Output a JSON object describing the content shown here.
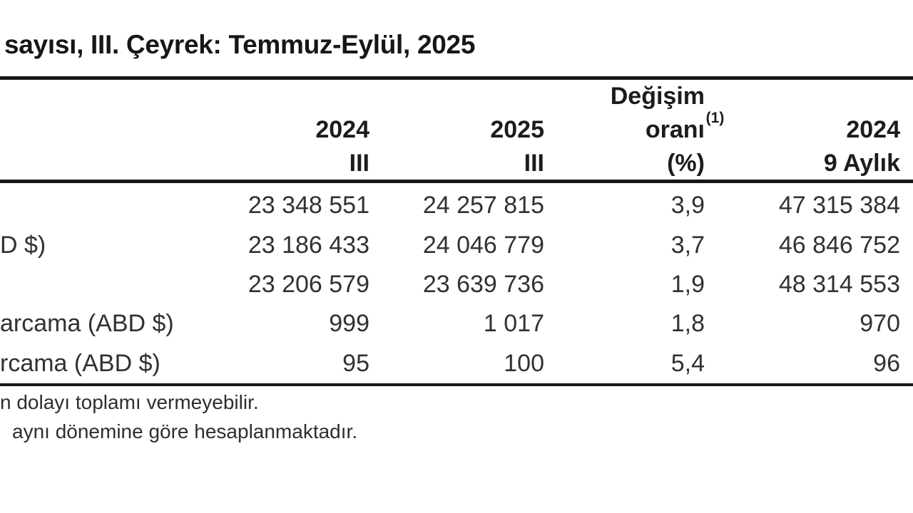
{
  "document": {
    "title": "sayısı, III. Çeyrek: Temmuz-Eylül, 2025"
  },
  "table": {
    "header": {
      "col_2024q": {
        "line1": "2024",
        "line2": "III"
      },
      "col_2025q": {
        "line1": "2025",
        "line2": "III"
      },
      "col_change": {
        "line1": "Değişim",
        "line2": "oranı",
        "sup": "(1)",
        "line3": "(%)"
      },
      "col_9aylik": {
        "line1": "2024",
        "line2": "9 Aylık"
      }
    },
    "rows": [
      {
        "label": "",
        "q2024": "23 348 551",
        "q2025": "24 257 815",
        "change": "3,9",
        "nine2024": "47 315 384"
      },
      {
        "label": "D $)",
        "q2024": "23 186 433",
        "q2025": "24 046 779",
        "change": "3,7",
        "nine2024": "46 846 752"
      },
      {
        "label": "",
        "q2024": "23 206 579",
        "q2025": "23 639 736",
        "change": "1,9",
        "nine2024": "48 314 553"
      },
      {
        "label": "arcama (ABD $)",
        "q2024": "999",
        "q2025": "1 017",
        "change": "1,8",
        "nine2024": "970"
      },
      {
        "label": "rcama (ABD $)",
        "q2024": "95",
        "q2025": "100",
        "change": "5,4",
        "nine2024": "96"
      }
    ]
  },
  "footnotes": {
    "note1": "n dolayı toplamı vermeyebilir.",
    "note2": "aynı dönemine göre hesaplanmaktadır."
  },
  "colors": {
    "background": "#ffffff",
    "title_text": "#161616",
    "header_text": "#1c1c1c",
    "body_text": "#313131",
    "rule": "#171717"
  }
}
